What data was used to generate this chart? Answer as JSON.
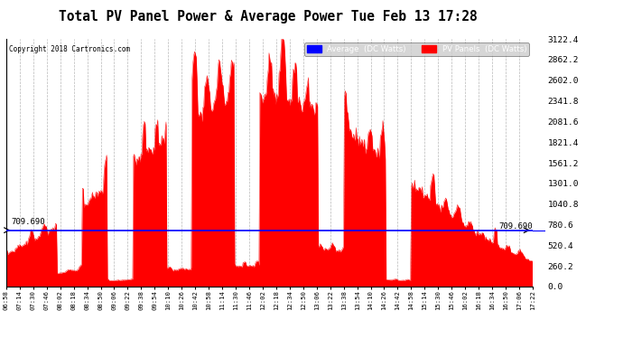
{
  "title": "Total PV Panel Power & Average Power Tue Feb 13 17:28",
  "copyright": "Copyright 2018 Cartronics.com",
  "average_value": 709.69,
  "y_max": 3122.4,
  "y_min": 0.0,
  "y_ticks": [
    0.0,
    260.2,
    520.4,
    780.6,
    1040.8,
    1301.0,
    1561.2,
    1821.4,
    2081.6,
    2341.8,
    2602.0,
    2862.2,
    3122.4
  ],
  "x_labels": [
    "06:58",
    "07:14",
    "07:30",
    "07:46",
    "08:02",
    "08:18",
    "08:34",
    "08:50",
    "09:06",
    "09:22",
    "09:38",
    "09:54",
    "10:10",
    "10:26",
    "10:42",
    "10:58",
    "11:14",
    "11:30",
    "11:46",
    "12:02",
    "12:18",
    "12:34",
    "12:50",
    "13:06",
    "13:22",
    "13:38",
    "13:54",
    "14:10",
    "14:26",
    "14:42",
    "14:58",
    "15:14",
    "15:30",
    "15:46",
    "16:02",
    "16:18",
    "16:34",
    "16:50",
    "17:06",
    "17:22"
  ],
  "pv_color": "#ff0000",
  "avg_color": "#0000ff",
  "background_color": "#ffffff",
  "grid_color": "#888888",
  "legend_avg_label": "Average  (DC Watts)",
  "legend_pv_label": "PV Panels  (DC Watts)",
  "avg_label_on_axis": "709.690"
}
